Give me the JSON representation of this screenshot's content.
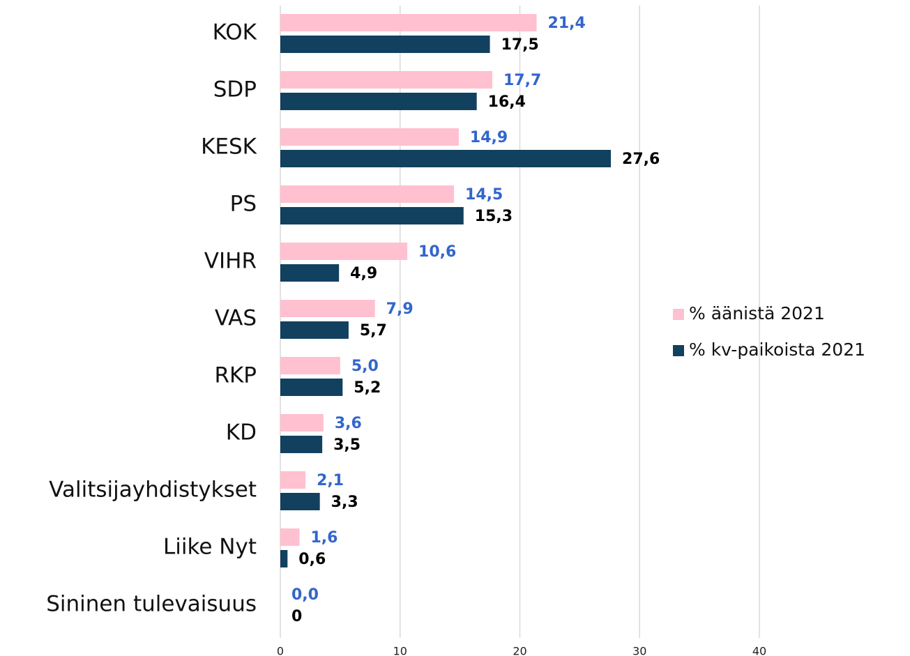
{
  "chart_data": {
    "type": "bar",
    "orientation": "horizontal",
    "categories": [
      "KOK",
      "SDP",
      "KESK",
      "PS",
      "VIHR",
      "VAS",
      "RKP",
      "KD",
      "Valitsijayhdistykset",
      "Liike Nyt",
      "Sininen tulevaisuus"
    ],
    "series": [
      {
        "name": "% äänistä 2021",
        "color": "#ffc0cf",
        "label_color": "#3366cc",
        "values": [
          21.4,
          17.7,
          14.9,
          14.5,
          10.6,
          7.9,
          5.0,
          3.6,
          2.1,
          1.6,
          0.0
        ],
        "value_labels": [
          "21,4",
          "17,7",
          "14,9",
          "14,5",
          "10,6",
          "7,9",
          "5,0",
          "3,6",
          "2,1",
          "1,6",
          "0,0"
        ]
      },
      {
        "name": "% kv-paikoista 2021",
        "color": "#12405f",
        "label_color": "#000000",
        "values": [
          17.5,
          16.4,
          27.6,
          15.3,
          4.9,
          5.7,
          5.2,
          3.5,
          3.3,
          0.6,
          0
        ],
        "value_labels": [
          "17,5",
          "16,4",
          "27,6",
          "15,3",
          "4,9",
          "5,7",
          "5,2",
          "3,5",
          "3,3",
          "0,6",
          "0"
        ]
      }
    ],
    "xlim": [
      0,
      40
    ],
    "xticks": [
      0,
      10,
      20,
      30,
      40
    ],
    "grid": true,
    "legend": "right"
  }
}
